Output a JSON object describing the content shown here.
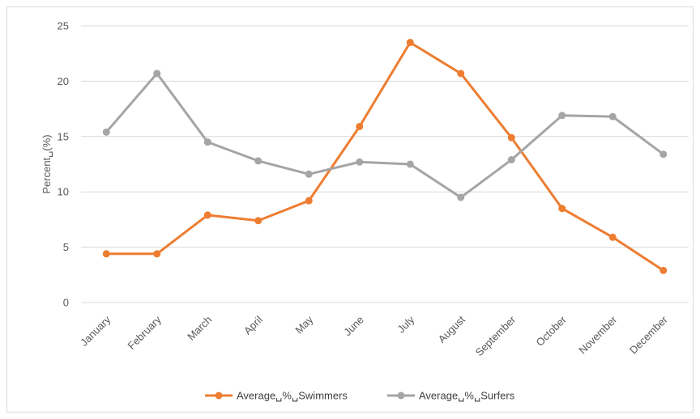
{
  "chart_data": {
    "type": "line",
    "title": "",
    "xlabel": "",
    "ylabel": "Percent␣(%)",
    "ylim": [
      0,
      25
    ],
    "yticks": [
      0,
      5,
      10,
      15,
      20,
      25
    ],
    "grid": true,
    "legend_position": "bottom",
    "categories": [
      "January",
      "February",
      "March",
      "April",
      "May",
      "June",
      "July",
      "August",
      "September",
      "October",
      "November",
      "December"
    ],
    "series": [
      {
        "name": "Average␣%␣Swimmers",
        "color": "#ed7d31",
        "values": [
          4.4,
          4.4,
          7.9,
          7.4,
          9.2,
          15.9,
          23.5,
          20.7,
          14.9,
          8.5,
          5.9,
          2.9
        ]
      },
      {
        "name": "Average␣%␣Surfers",
        "color": "#a5a5a5",
        "values": [
          15.4,
          20.7,
          14.5,
          12.8,
          11.6,
          12.7,
          12.5,
          9.5,
          12.9,
          16.9,
          16.8,
          13.4
        ]
      }
    ]
  }
}
